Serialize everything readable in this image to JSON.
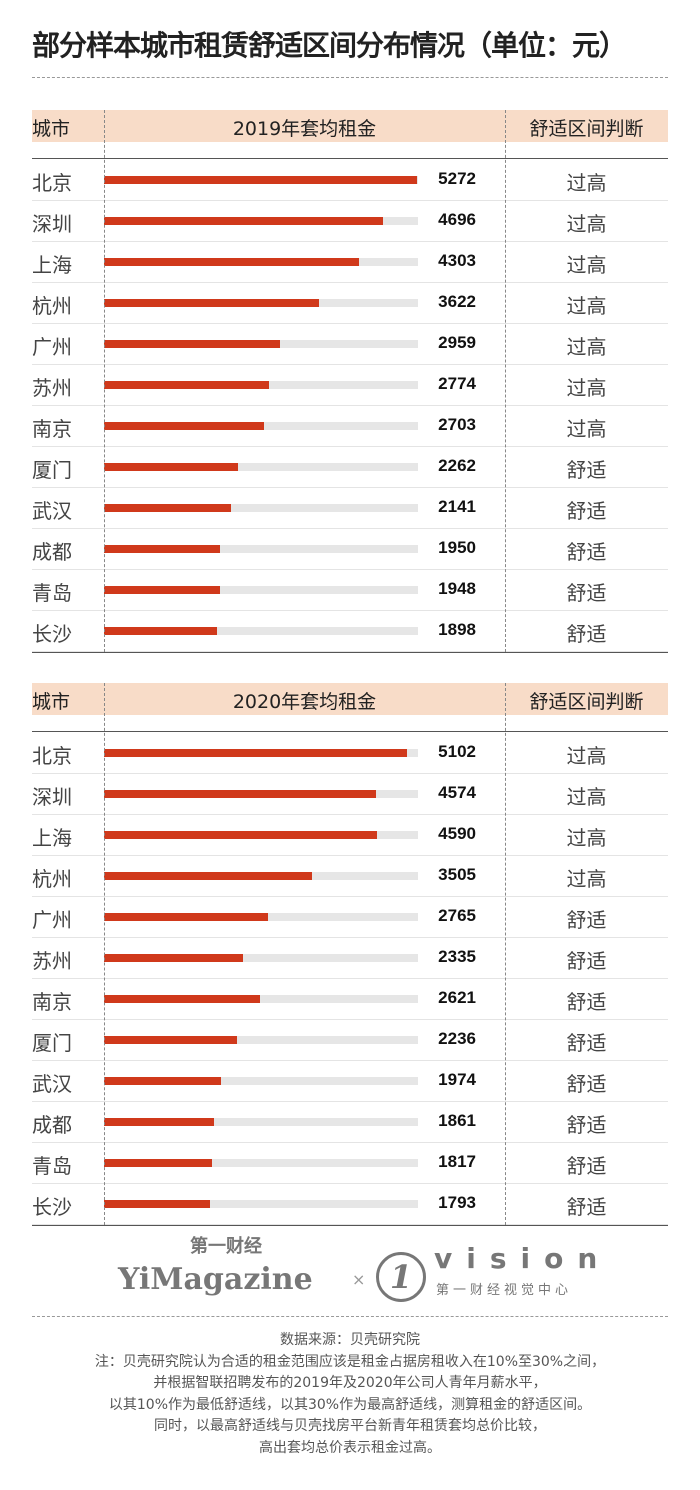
{
  "title": "部分样本城市租赁舒适区间分布情况（单位：元）",
  "chart_data": [
    {
      "type": "bar",
      "title": "2019年套均租金",
      "header": {
        "city": "城市",
        "value": "2019年套均租金",
        "judgement": "舒适区间判断"
      },
      "categories": [
        "北京",
        "深圳",
        "上海",
        "杭州",
        "广州",
        "苏州",
        "南京",
        "厦门",
        "武汉",
        "成都",
        "青岛",
        "长沙"
      ],
      "values": [
        5272,
        4696,
        4303,
        3622,
        2959,
        2774,
        2703,
        2262,
        2141,
        1950,
        1948,
        1898
      ],
      "judgements": [
        "过高",
        "过高",
        "过高",
        "过高",
        "过高",
        "过高",
        "过高",
        "舒适",
        "舒适",
        "舒适",
        "舒适",
        "舒适"
      ],
      "xlim": [
        0,
        5272
      ]
    },
    {
      "type": "bar",
      "title": "2020年套均租金",
      "header": {
        "city": "城市",
        "value": "2020年套均租金",
        "judgement": "舒适区间判断"
      },
      "categories": [
        "北京",
        "深圳",
        "上海",
        "杭州",
        "广州",
        "苏州",
        "南京",
        "厦门",
        "武汉",
        "成都",
        "青岛",
        "长沙"
      ],
      "values": [
        5102,
        4574,
        4590,
        3505,
        2765,
        2335,
        2621,
        2236,
        1974,
        1861,
        1817,
        1793
      ],
      "judgements": [
        "过高",
        "过高",
        "过高",
        "过高",
        "舒适",
        "舒适",
        "舒适",
        "舒适",
        "舒适",
        "舒适",
        "舒适",
        "舒适"
      ],
      "xlim": [
        0,
        5272
      ]
    }
  ],
  "colors": {
    "bar": "#d0391b",
    "track": "#e6e6e6",
    "header_bg": "#f8dcc8"
  },
  "logo": {
    "cn": "第一财经",
    "en": "YiMagazine",
    "x": "×",
    "mark": "1",
    "vision": "vision",
    "vision_cn": "第一财经视觉中心"
  },
  "footer": [
    "数据来源：贝壳研究院",
    "注：贝壳研究院认为合适的租金范围应该是租金占据房租收入在10%至30%之间，",
    "并根据智联招聘发布的2019年及2020年公司人青年月薪水平，",
    "以其10%作为最低舒适线，以其30%作为最高舒适线，测算租金的舒适区间。",
    "同时，以最高舒适线与贝壳找房平台新青年租赁套均总价比较，",
    "高出套均总价表示租金过高。"
  ]
}
